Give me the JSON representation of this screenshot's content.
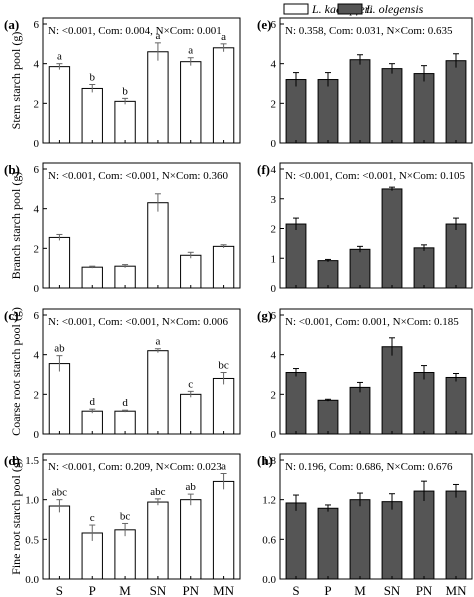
{
  "legend": [
    {
      "name": "L. kaempferi",
      "color": "#ffffff"
    },
    {
      "name": "L. olegensis",
      "color": "#555555"
    }
  ],
  "chart_data": [
    {
      "type": "bar",
      "panel": "(a)",
      "series": "L. kaempferi",
      "ylabel": "Stem starch pool (g)",
      "ylim": [
        0,
        6
      ],
      "yticks": [
        0,
        2,
        4,
        6
      ],
      "stats": "N: <0.001, Com: 0.004, N×Com: 0.001",
      "categories": [
        "S",
        "P",
        "M",
        "SN",
        "PN",
        "MN"
      ],
      "values": [
        3.85,
        2.75,
        2.1,
        4.6,
        4.1,
        4.8
      ],
      "errors": [
        0.15,
        0.2,
        0.15,
        0.45,
        0.2,
        0.2
      ],
      "letters": [
        "a",
        "b",
        "b",
        "a",
        "a",
        "a"
      ]
    },
    {
      "type": "bar",
      "panel": "(e)",
      "series": "L. olegensis",
      "ylabel": "",
      "ylim": [
        0,
        6
      ],
      "yticks": [
        0,
        2,
        4,
        6
      ],
      "stats": "N: 0.358, Com: 0.031, N×Com: 0.635",
      "categories": [
        "S",
        "P",
        "M",
        "SN",
        "PN",
        "MN"
      ],
      "values": [
        3.2,
        3.2,
        4.2,
        3.75,
        3.5,
        4.15
      ],
      "errors": [
        0.35,
        0.35,
        0.25,
        0.25,
        0.4,
        0.35
      ],
      "letters": []
    },
    {
      "type": "bar",
      "panel": "(b)",
      "series": "L. kaempferi",
      "ylabel": "Branch starch pool (g)",
      "ylim": [
        0,
        6
      ],
      "yticks": [
        0,
        2,
        4,
        6
      ],
      "stats": "N: <0.001, Com: <0.001, N×Com: 0.360",
      "categories": [
        "S",
        "P",
        "M",
        "SN",
        "PN",
        "MN"
      ],
      "values": [
        2.55,
        1.05,
        1.1,
        4.3,
        1.65,
        2.1
      ],
      "errors": [
        0.15,
        0.05,
        0.08,
        0.45,
        0.15,
        0.08
      ],
      "letters": []
    },
    {
      "type": "bar",
      "panel": "(f)",
      "series": "L. olegensis",
      "ylabel": "",
      "ylim": [
        0,
        4
      ],
      "yticks": [
        0,
        1,
        2,
        3,
        4
      ],
      "stats": "N: <0.001, Com: <0.001, N×Com: 0.105",
      "categories": [
        "S",
        "P",
        "M",
        "SN",
        "PN",
        "MN"
      ],
      "values": [
        2.15,
        0.92,
        1.3,
        3.33,
        1.35,
        2.15
      ],
      "errors": [
        0.2,
        0.04,
        0.1,
        0.06,
        0.1,
        0.2
      ],
      "letters": []
    },
    {
      "type": "bar",
      "panel": "(c)",
      "series": "L. kaempferi",
      "ylabel": "Coarse root starch pool (g)",
      "ylim": [
        0,
        6
      ],
      "yticks": [
        0,
        2,
        4,
        6
      ],
      "stats": "N: <0.001, Com: <0.001, N×Com: 0.006",
      "categories": [
        "S",
        "P",
        "M",
        "SN",
        "PN",
        "MN"
      ],
      "values": [
        3.55,
        1.15,
        1.15,
        4.2,
        2.0,
        2.8
      ],
      "errors": [
        0.4,
        0.1,
        0.05,
        0.1,
        0.15,
        0.3
      ],
      "letters": [
        "ab",
        "d",
        "d",
        "a",
        "c",
        "bc"
      ]
    },
    {
      "type": "bar",
      "panel": "(g)",
      "series": "L. olegensis",
      "ylabel": "",
      "ylim": [
        0,
        6
      ],
      "yticks": [
        0,
        2,
        4,
        6
      ],
      "stats": "N: <0.001, Com: 0.001, N×Com: 0.185",
      "categories": [
        "S",
        "P",
        "M",
        "SN",
        "PN",
        "MN"
      ],
      "values": [
        3.1,
        1.7,
        2.35,
        4.4,
        3.1,
        2.85
      ],
      "errors": [
        0.2,
        0.05,
        0.25,
        0.45,
        0.35,
        0.2
      ],
      "letters": []
    },
    {
      "type": "bar",
      "panel": "(d)",
      "series": "L. kaempferi",
      "ylabel": "Fine root starch pool (g)",
      "ylim": [
        0,
        1.5
      ],
      "yticks": [
        0.0,
        0.5,
        1.0,
        1.5
      ],
      "stats": "N: <0.001, Com: 0.209, N×Com: 0.023",
      "categories": [
        "S",
        "P",
        "M",
        "SN",
        "PN",
        "MN"
      ],
      "values": [
        0.92,
        0.58,
        0.62,
        0.97,
        1.0,
        1.23
      ],
      "errors": [
        0.08,
        0.1,
        0.08,
        0.04,
        0.07,
        0.1
      ],
      "letters": [
        "abc",
        "c",
        "bc",
        "abc",
        "ab",
        "a"
      ]
    },
    {
      "type": "bar",
      "panel": "(h)",
      "series": "L. olegensis",
      "ylabel": "",
      "ylim": [
        0,
        1.8
      ],
      "yticks": [
        0.0,
        0.6,
        1.2,
        1.8
      ],
      "stats": "N: 0.196, Com: 0.686, N×Com: 0.676",
      "categories": [
        "S",
        "P",
        "M",
        "SN",
        "PN",
        "MN"
      ],
      "values": [
        1.15,
        1.07,
        1.2,
        1.17,
        1.33,
        1.33
      ],
      "errors": [
        0.12,
        0.05,
        0.1,
        0.12,
        0.15,
        0.1
      ],
      "letters": []
    }
  ]
}
